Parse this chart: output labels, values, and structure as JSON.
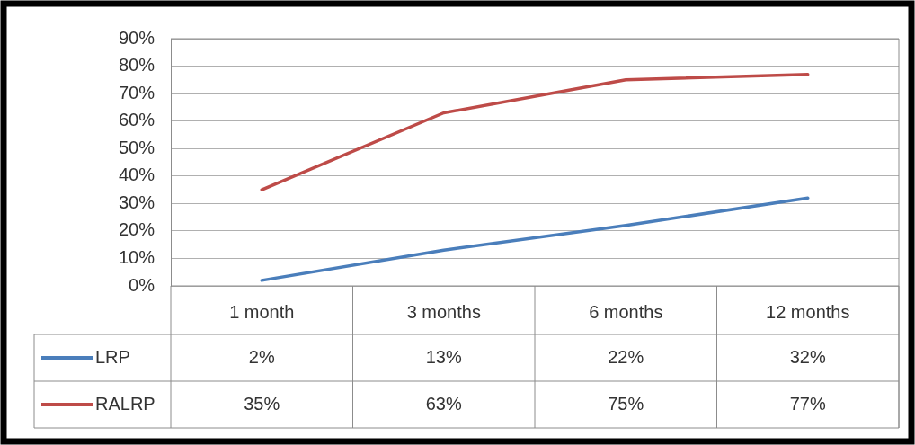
{
  "chart_data": {
    "type": "line",
    "categories": [
      "1 month",
      "3 months",
      "6 months",
      "12 months"
    ],
    "series": [
      {
        "name": "LRP",
        "color": "#4a7ebb",
        "values": [
          2,
          13,
          22,
          32
        ],
        "value_labels": [
          "2%",
          "13%",
          "22%",
          "32%"
        ]
      },
      {
        "name": "RALRP",
        "color": "#be4b48",
        "values": [
          35,
          63,
          75,
          77
        ],
        "value_labels": [
          "35%",
          "63%",
          "75%",
          "77%"
        ]
      }
    ],
    "ylim": [
      0,
      90
    ],
    "yticks": [
      {
        "value": 0,
        "label": "0%"
      },
      {
        "value": 10,
        "label": "10%"
      },
      {
        "value": 20,
        "label": "20%"
      },
      {
        "value": 30,
        "label": "30%"
      },
      {
        "value": 40,
        "label": "40%"
      },
      {
        "value": 50,
        "label": "50%"
      },
      {
        "value": 60,
        "label": "60%"
      },
      {
        "value": 70,
        "label": "70%"
      },
      {
        "value": 80,
        "label": "80%"
      },
      {
        "value": 90,
        "label": "90%"
      }
    ],
    "grid": "y",
    "legend": "bottom left",
    "marker": "none",
    "line_style": "solid"
  }
}
